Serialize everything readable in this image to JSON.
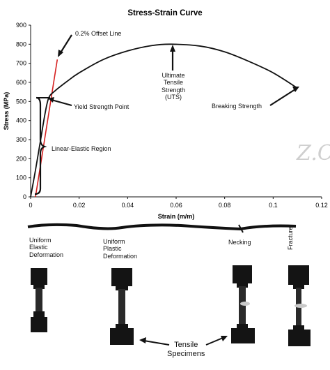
{
  "chart_data": {
    "type": "line",
    "title": "Stress-Strain Curve",
    "xlabel": "Strain (m/m)",
    "ylabel": "Stress (MPa)",
    "xlim": [
      0,
      0.12
    ],
    "ylim": [
      0,
      900
    ],
    "xticks": [
      "0",
      "0.02",
      "0.04",
      "0.06",
      "0.08",
      "0.1",
      "0.12"
    ],
    "yticks": [
      "0",
      "100",
      "200",
      "300",
      "400",
      "500",
      "600",
      "700",
      "800",
      "900"
    ],
    "grid": false,
    "series": [
      {
        "x": [
          0,
          0.002,
          0.004,
          0.006,
          0.0075,
          0.01,
          0.015,
          0.02,
          0.03,
          0.04,
          0.05,
          0.058,
          0.07,
          0.08,
          0.09,
          0.1,
          0.11
        ],
        "y": [
          0,
          140,
          290,
          440,
          520,
          555,
          605,
          650,
          720,
          765,
          793,
          800,
          790,
          760,
          710,
          650,
          570
        ]
      }
    ],
    "offset_line": {
      "x": [
        0.002,
        0.011
      ],
      "y": [
        0,
        720
      ],
      "color": "#d62020"
    },
    "annotations": {
      "offset_line": "0.2% Offset Line",
      "yield": "Yield Strength Point",
      "elastic": "Linear-Elastic Region",
      "uts": [
        "Ultimate",
        "Tensile",
        "Strength",
        "(UTS)"
      ],
      "breaking": "Breaking Strength"
    }
  },
  "stages": {
    "uniform_elastic": [
      "Uniform",
      "Elastic",
      "Deformation"
    ],
    "uniform_plastic": [
      "Uniform",
      "Plastic",
      "Deformation"
    ],
    "necking": "Necking",
    "fracture": "Fracture",
    "specimens": [
      "Tensile",
      "Specimens"
    ]
  },
  "watermark": "Z.C"
}
